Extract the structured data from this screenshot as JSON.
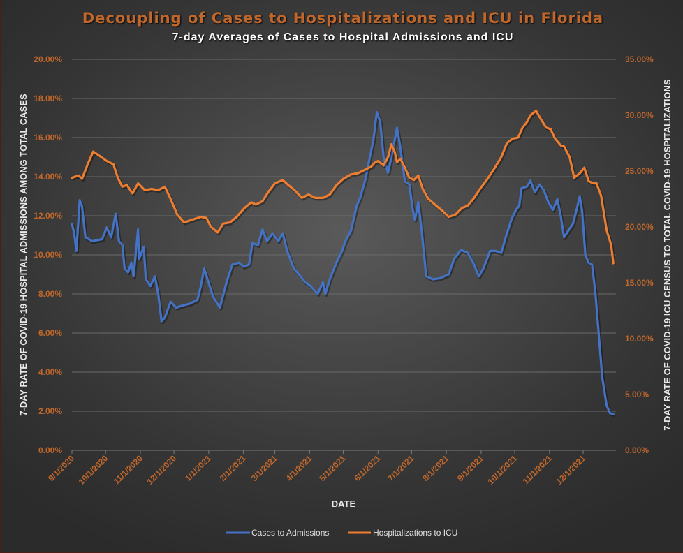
{
  "chart_data": {
    "type": "line",
    "title": "Decoupling of Cases to Hospitalizations and ICU in Florida",
    "subtitle": "7-day Averages of Cases to Hospital Admissions and ICU",
    "xlabel": "DATE",
    "ylabel_left": "7-DAY RATE OF COVID-19 HOSPITAL ADMISSIONS AMONG TOTAL CASES",
    "ylabel_right": "7-DAY RATE OF COVID-19 ICU CENSUS TO TOTAL COVID-19 HOSPITALIZATIONS",
    "x_start_date": "9/1/2020",
    "x_unit": "days since 9/1/2020",
    "x_range_days": [
      0,
      483
    ],
    "x_ticks": [
      {
        "day": 0,
        "label": "9/1/2020"
      },
      {
        "day": 30,
        "label": "10/1/2020"
      },
      {
        "day": 61,
        "label": "11/1/2020"
      },
      {
        "day": 91,
        "label": "12/1/2020"
      },
      {
        "day": 122,
        "label": "1/1/2021"
      },
      {
        "day": 153,
        "label": "2/1/2021"
      },
      {
        "day": 181,
        "label": "3/1/2021"
      },
      {
        "day": 212,
        "label": "4/1/2021"
      },
      {
        "day": 242,
        "label": "5/1/2021"
      },
      {
        "day": 273,
        "label": "6/1/2021"
      },
      {
        "day": 303,
        "label": "7/1/2021"
      },
      {
        "day": 334,
        "label": "8/1/2021"
      },
      {
        "day": 365,
        "label": "9/1/2021"
      },
      {
        "day": 395,
        "label": "10/1/2021"
      },
      {
        "day": 426,
        "label": "11/1/2021"
      },
      {
        "day": 456,
        "label": "12/1/2021"
      }
    ],
    "ylim_left": [
      0,
      20
    ],
    "yticks_left": [
      "0.00%",
      "2.00%",
      "4.00%",
      "6.00%",
      "8.00%",
      "10.00%",
      "12.00%",
      "14.00%",
      "16.00%",
      "18.00%",
      "20.00%"
    ],
    "ylim_right": [
      0,
      35
    ],
    "yticks_right": [
      "0.00%",
      "5.00%",
      "10.00%",
      "15.00%",
      "20.00%",
      "25.00%",
      "30.00%",
      "35.00%"
    ],
    "grid": true,
    "legend_position": "bottom-center",
    "series": [
      {
        "name": "Cases to Admissions",
        "axis": "left",
        "color": "#4472c4",
        "x": [
          0,
          2,
          4,
          7,
          9,
          12,
          18,
          27,
          31,
          35,
          39,
          42,
          45,
          47,
          50,
          53,
          55,
          59,
          60,
          64,
          66,
          70,
          74,
          77,
          80,
          83,
          88,
          93,
          98,
          105,
          112,
          115,
          118,
          121,
          126,
          132,
          138,
          143,
          149,
          153,
          158,
          161,
          166,
          170,
          174,
          179,
          184,
          188,
          192,
          198,
          204,
          208,
          213,
          219,
          224,
          226,
          230,
          236,
          241,
          244,
          249,
          254,
          257,
          262,
          264,
          269,
          272,
          275,
          278,
          282,
          285,
          288,
          290,
          293,
          297,
          301,
          304,
          306,
          309,
          312,
          316,
          322,
          328,
          336,
          341,
          347,
          353,
          358,
          363,
          367,
          373,
          378,
          383,
          387,
          392,
          396,
          399,
          401,
          406,
          409,
          413,
          417,
          421,
          425,
          429,
          433,
          436,
          439,
          443,
          447,
          451,
          453,
          455,
          458,
          461,
          464,
          467,
          470,
          473,
          477,
          480,
          483
        ],
        "y": [
          11.6,
          11.1,
          10.2,
          12.8,
          12.5,
          10.9,
          10.7,
          10.8,
          11.4,
          10.9,
          12.1,
          10.7,
          10.5,
          9.3,
          9.1,
          9.6,
          8.9,
          11.3,
          9.8,
          10.4,
          8.75,
          8.4,
          8.9,
          8.0,
          6.6,
          6.8,
          7.6,
          7.3,
          7.4,
          7.5,
          7.7,
          8.4,
          9.3,
          8.75,
          7.85,
          7.3,
          8.6,
          9.5,
          9.6,
          9.4,
          9.5,
          10.6,
          10.5,
          11.3,
          10.7,
          11.1,
          10.7,
          11.1,
          10.2,
          9.3,
          8.9,
          8.6,
          8.4,
          8.0,
          8.6,
          8.0,
          8.75,
          9.6,
          10.2,
          10.7,
          11.25,
          12.5,
          12.9,
          13.9,
          14.5,
          15.9,
          17.3,
          16.8,
          15.0,
          14.2,
          15.0,
          15.9,
          16.5,
          15.5,
          13.75,
          13.6,
          12.3,
          11.8,
          12.7,
          11.25,
          8.9,
          8.75,
          8.8,
          9.0,
          9.8,
          10.25,
          10.1,
          9.6,
          8.9,
          9.3,
          10.2,
          10.2,
          10.1,
          10.9,
          11.8,
          12.3,
          12.5,
          13.4,
          13.5,
          13.8,
          13.2,
          13.6,
          13.3,
          12.7,
          12.3,
          12.85,
          12.0,
          10.9,
          11.25,
          11.6,
          12.5,
          13.0,
          12.3,
          10.0,
          9.6,
          9.5,
          8.0,
          5.9,
          3.75,
          2.3,
          1.9,
          1.85
        ]
      },
      {
        "name": "Hospitalizations to ICU",
        "axis": "right",
        "color": "#ed7d31",
        "x": [
          0,
          6,
          9,
          14,
          19,
          24,
          31,
          37,
          41,
          45,
          49,
          54,
          59,
          65,
          71,
          77,
          83,
          88,
          94,
          100,
          106,
          115,
          120,
          124,
          130,
          135,
          141,
          147,
          154,
          160,
          164,
          170,
          175,
          181,
          188,
          193,
          199,
          205,
          211,
          217,
          224,
          230,
          236,
          242,
          249,
          255,
          261,
          267,
          270,
          273,
          278,
          282,
          285,
          288,
          290,
          293,
          297,
          301,
          305,
          309,
          313,
          318,
          325,
          331,
          336,
          342,
          348,
          353,
          358,
          364,
          370,
          376,
          383,
          388,
          393,
          398,
          402,
          406,
          409,
          414,
          418,
          423,
          427,
          431,
          436,
          439,
          444,
          448,
          453,
          457,
          461,
          465,
          468,
          472,
          477,
          481,
          483
        ],
        "y": [
          24.4,
          24.6,
          24.3,
          25.6,
          26.75,
          26.4,
          25.9,
          25.6,
          24.4,
          23.6,
          23.75,
          23.0,
          23.9,
          23.3,
          23.4,
          23.3,
          23.6,
          22.5,
          21.1,
          20.4,
          20.6,
          20.9,
          20.8,
          20.0,
          19.5,
          20.3,
          20.4,
          20.9,
          21.7,
          22.2,
          22.0,
          22.3,
          23.1,
          23.9,
          24.2,
          23.75,
          23.25,
          22.6,
          22.9,
          22.6,
          22.6,
          22.9,
          23.75,
          24.3,
          24.7,
          24.8,
          25.1,
          25.4,
          25.75,
          25.9,
          25.5,
          26.25,
          27.4,
          26.7,
          25.8,
          26.1,
          25.3,
          24.4,
          24.2,
          24.6,
          23.4,
          22.5,
          21.9,
          21.4,
          20.9,
          21.1,
          21.7,
          21.9,
          22.5,
          23.4,
          24.2,
          25.1,
          26.25,
          27.5,
          27.9,
          28.0,
          28.9,
          29.4,
          30.0,
          30.4,
          29.7,
          28.9,
          28.75,
          27.9,
          27.3,
          27.2,
          26.25,
          24.4,
          24.8,
          25.3,
          24.1,
          23.9,
          23.9,
          22.8,
          19.7,
          18.4,
          16.75
        ]
      }
    ]
  }
}
